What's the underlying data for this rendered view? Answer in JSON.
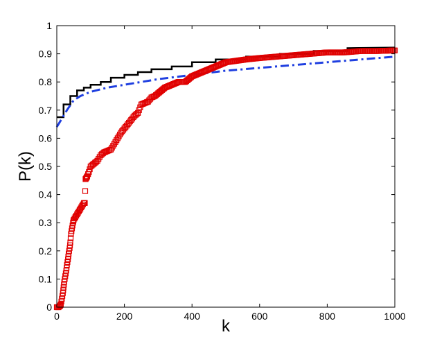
{
  "chart_data": {
    "type": "line",
    "title": "",
    "xlabel": "k",
    "ylabel": "P(k)",
    "xlim": [
      0,
      1000
    ],
    "ylim": [
      0,
      1
    ],
    "xticks": [
      0,
      200,
      400,
      600,
      800,
      1000
    ],
    "yticks": [
      0,
      0.1,
      0.2,
      0.3,
      0.4,
      0.5,
      0.6,
      0.7,
      0.8,
      0.9,
      1
    ],
    "xtick_labels": [
      "0",
      "200",
      "400",
      "600",
      "800",
      "1000"
    ],
    "ytick_labels": [
      "0",
      "0.1",
      "0.2",
      "0.3",
      "0.4",
      "0.5",
      "0.6",
      "0.7",
      "0.8",
      "0.9",
      "1"
    ],
    "grid": false,
    "legend": "none",
    "series": [
      {
        "style": "solid-step",
        "color": "#000000",
        "x": [
          0,
          20,
          20,
          40,
          40,
          60,
          60,
          80,
          80,
          100,
          100,
          130,
          130,
          160,
          160,
          200,
          200,
          240,
          240,
          280,
          280,
          340,
          340,
          400,
          400,
          470,
          470,
          560,
          560,
          660,
          660,
          760,
          760,
          860,
          860,
          1000
        ],
        "y": [
          0.675,
          0.675,
          0.72,
          0.72,
          0.75,
          0.75,
          0.77,
          0.77,
          0.78,
          0.78,
          0.79,
          0.79,
          0.8,
          0.8,
          0.815,
          0.815,
          0.825,
          0.825,
          0.835,
          0.835,
          0.845,
          0.845,
          0.855,
          0.855,
          0.87,
          0.87,
          0.88,
          0.88,
          0.89,
          0.89,
          0.9,
          0.9,
          0.91,
          0.91,
          0.92,
          0.922
        ]
      },
      {
        "style": "dash-dot",
        "color": "#1f3fe0",
        "x": [
          0,
          10,
          20,
          30,
          50,
          70,
          100,
          150,
          200,
          250,
          300,
          400,
          500,
          600,
          700,
          800,
          900,
          1000
        ],
        "y": [
          0.64,
          0.66,
          0.68,
          0.7,
          0.735,
          0.75,
          0.765,
          0.78,
          0.79,
          0.8,
          0.81,
          0.825,
          0.84,
          0.85,
          0.86,
          0.87,
          0.88,
          0.89
        ]
      },
      {
        "style": "square-markers",
        "color": "#e00000",
        "x": [
          0,
          5,
          10,
          12,
          15,
          18,
          20,
          22,
          25,
          28,
          30,
          33,
          35,
          38,
          40,
          42,
          45,
          48,
          50,
          55,
          60,
          65,
          70,
          75,
          80,
          83,
          85,
          88,
          90,
          95,
          100,
          110,
          120,
          130,
          140,
          150,
          160,
          170,
          180,
          190,
          200,
          210,
          220,
          230,
          240,
          250,
          260,
          270,
          280,
          290,
          300,
          320,
          340,
          360,
          380,
          400,
          420,
          440,
          460,
          480,
          500,
          530,
          560,
          600,
          650,
          700,
          750,
          800,
          850,
          900,
          950,
          1000
        ],
        "y": [
          0.0,
          0.0,
          0.005,
          0.01,
          0.03,
          0.05,
          0.07,
          0.09,
          0.11,
          0.13,
          0.15,
          0.17,
          0.19,
          0.21,
          0.23,
          0.26,
          0.28,
          0.3,
          0.31,
          0.32,
          0.33,
          0.34,
          0.35,
          0.36,
          0.37,
          0.37,
          0.455,
          0.46,
          0.465,
          0.48,
          0.5,
          0.51,
          0.52,
          0.54,
          0.55,
          0.555,
          0.56,
          0.58,
          0.6,
          0.62,
          0.635,
          0.65,
          0.665,
          0.68,
          0.69,
          0.72,
          0.725,
          0.73,
          0.745,
          0.75,
          0.76,
          0.78,
          0.79,
          0.8,
          0.8,
          0.82,
          0.83,
          0.84,
          0.85,
          0.86,
          0.87,
          0.875,
          0.88,
          0.885,
          0.89,
          0.895,
          0.9,
          0.905,
          0.905,
          0.91,
          0.91,
          0.912
        ]
      }
    ]
  }
}
